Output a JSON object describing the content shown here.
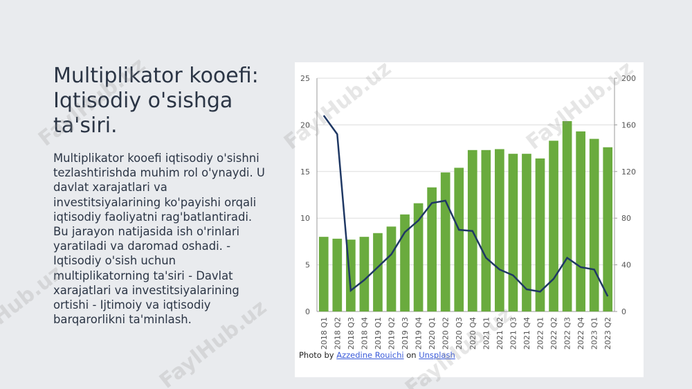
{
  "slide": {
    "title": "Multiplikator kooefi: Iqtisodiy o'sishga ta'siri.",
    "body": "Multiplikator kooefi iqtisodiy o'sishni tezlashtirishda muhim rol o'ynaydi. U davlat xarajatlari va investitsiyalarining ko'payishi orqali iqtisodiy faoliyatni rag'batlantiradi. Bu jarayon natijasida ish o'rinlari yaratiladi va daromad oshadi. - Iqtisodiy o'sish uchun multiplikatorning ta'siri - Davlat xarajatlari va investitsiyalarining ortishi - Ijtimoiy va iqtisodiy barqarorlikni ta'minlash.",
    "credit": {
      "prefix": "Photo by",
      "author": "Azzedine Rouichi",
      "middle": "on",
      "site": "Unsplash"
    },
    "watermark": "FaylHub.uz"
  },
  "chart_data": {
    "type": "bar",
    "categories": [
      "2018 Q1",
      "2018 Q2",
      "2018 Q3",
      "2018 Q4",
      "2019 Q1",
      "2019 Q2",
      "2019 Q3",
      "2019 Q4",
      "2020 Q1",
      "2020 Q2",
      "2020 Q3",
      "2020 Q4",
      "2021 Q1",
      "2021 Q2",
      "2021 Q3",
      "2021 Q4",
      "2022 Q1",
      "2022 Q2",
      "2022 Q3",
      "2022 Q4",
      "2023 Q1",
      "2023 Q2"
    ],
    "series": [
      {
        "type": "bar",
        "color": "#6aab3e",
        "values": [
          8.0,
          7.8,
          7.7,
          8.0,
          8.4,
          9.1,
          10.4,
          11.6,
          13.3,
          14.9,
          15.4,
          17.3,
          17.3,
          17.4,
          16.9,
          16.9,
          16.4,
          18.3,
          20.4,
          19.3,
          18.5,
          17.6
        ]
      },
      {
        "type": "line",
        "axis": "y2",
        "color": "#1f3864",
        "values": [
          168,
          152,
          18,
          27,
          38,
          49,
          68,
          78,
          93,
          95,
          70,
          69,
          46,
          36,
          31,
          19,
          17,
          28,
          46,
          38,
          36,
          13
        ]
      }
    ],
    "ylim": [
      0,
      25
    ],
    "yticks": [
      0,
      5,
      10,
      15,
      20,
      25
    ],
    "y2lim": [
      0,
      200
    ],
    "y2ticks": [
      0,
      40,
      80,
      120,
      160,
      200
    ],
    "grid": true
  }
}
